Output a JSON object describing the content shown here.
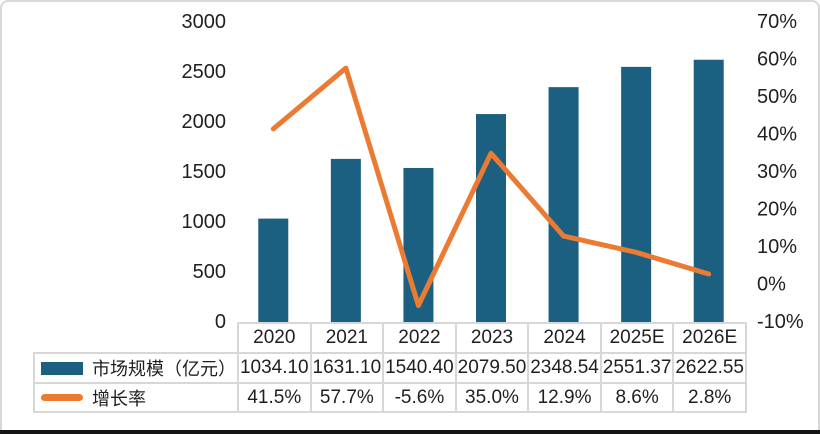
{
  "chart_data": {
    "type": "bar+line",
    "categories": [
      "2020",
      "2021",
      "2022",
      "2023",
      "2024",
      "2025E",
      "2026E"
    ],
    "series": [
      {
        "name": "市场规模（亿元）",
        "type": "bar",
        "axis": "left",
        "values": [
          1034.1,
          1631.1,
          1540.4,
          2079.5,
          2348.54,
          2551.37,
          2622.55
        ]
      },
      {
        "name": "增长率",
        "type": "line",
        "axis": "right",
        "values": [
          41.5,
          57.7,
          -5.6,
          35.0,
          12.9,
          8.6,
          2.8
        ]
      }
    ],
    "title": "",
    "xlabel": "",
    "ylabel": "",
    "left_axis": {
      "min": 0,
      "max": 3000,
      "step": 500,
      "ticks": [
        "3000",
        "2500",
        "2000",
        "1500",
        "1000",
        "500",
        "0"
      ]
    },
    "right_axis": {
      "min": -10,
      "max": 70,
      "step": 10,
      "ticks": [
        "70%",
        "60%",
        "50%",
        "40%",
        "30%",
        "20%",
        "10%",
        "0%",
        "-10%"
      ]
    },
    "grid": false,
    "legend_position": "table-left-column"
  },
  "table": {
    "legend": [
      {
        "label": "市场规模（亿元）",
        "swatch": "bar"
      },
      {
        "label": "增长率",
        "swatch": "line"
      }
    ],
    "year_row": [
      "2020",
      "2021",
      "2022",
      "2023",
      "2024",
      "2025E",
      "2026E"
    ],
    "market_row": [
      "1034.10",
      "1631.10",
      "1540.40",
      "2079.50",
      "2348.54",
      "2551.37",
      "2622.55"
    ],
    "growth_row": [
      "41.5%",
      "57.7%",
      "-5.6%",
      "35.0%",
      "12.9%",
      "8.6%",
      "2.8%"
    ]
  },
  "colors": {
    "bar": "#1B6080",
    "line": "#EB7B33",
    "table_border": "#D7D7D7",
    "frame_border": "#D8D8D8",
    "bottom_edge": "#151515",
    "text": "#1F1F1F",
    "background": "#FFFFFF"
  }
}
